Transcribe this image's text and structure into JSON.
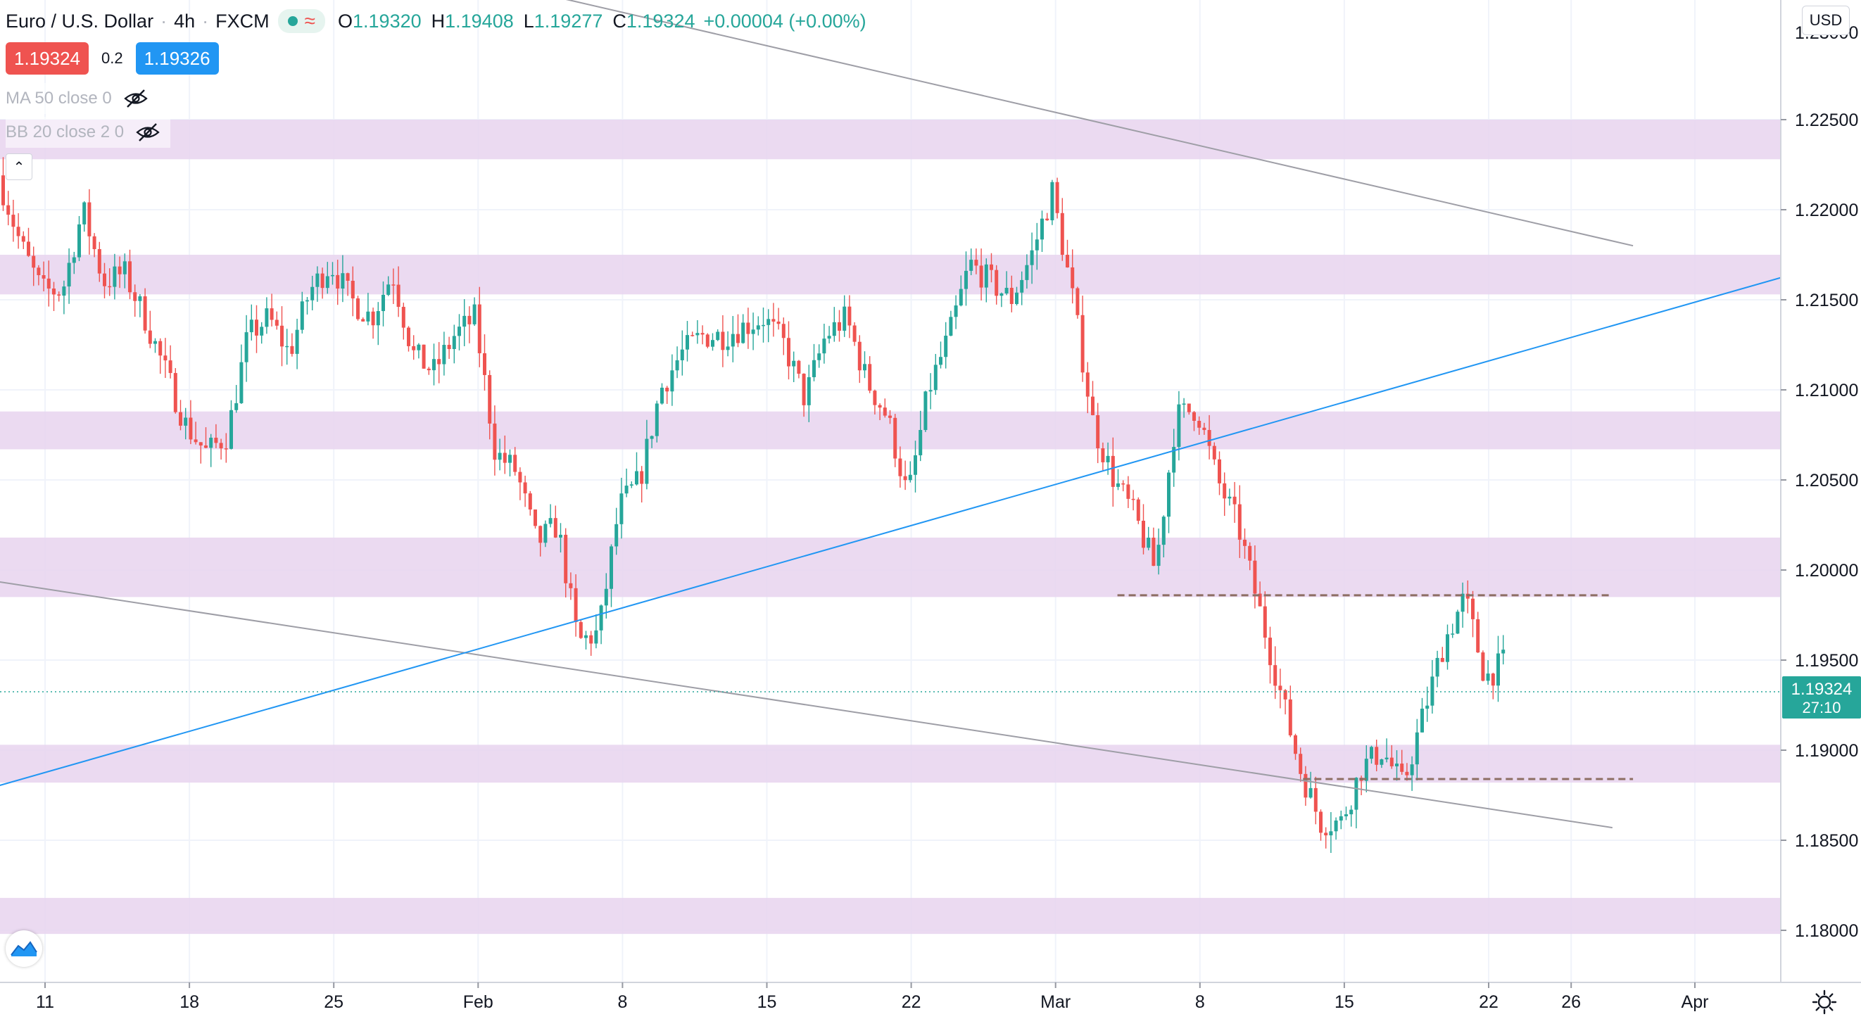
{
  "header": {
    "symbol": "Euro / U.S. Dollar",
    "interval": "4h",
    "exchange": "FXCM",
    "ohlc": {
      "o_label": "O",
      "o_value": "1.19320",
      "h_label": "H",
      "h_value": "1.19408",
      "l_label": "L",
      "l_value": "1.19277",
      "c_label": "C",
      "c_value": "1.19324",
      "change": "+0.00004 (+0.00%)"
    },
    "sell_price": "1.19324",
    "spread": "0.2",
    "buy_price": "1.19326",
    "currency": "USD"
  },
  "indicators": {
    "ma_label": "MA 50 close 0",
    "bb_label": "BB 20 close 2 0"
  },
  "colors": {
    "up": "#26a69a",
    "down": "#ef5350",
    "zone": "#e8d3ee",
    "blue_line": "#2196f3",
    "grey_line": "#9e9ea6",
    "dashed_line": "#8d6e63",
    "last_price": "#26a69a"
  },
  "chart_data": {
    "type": "candlestick",
    "timeframe": "4h",
    "x_ticks": [
      "11",
      "18",
      "25",
      "Feb",
      "8",
      "15",
      "22",
      "Mar",
      "8",
      "15",
      "22",
      "26",
      "Apr"
    ],
    "y_ticks": [
      "1.18000",
      "1.18500",
      "1.19000",
      "1.19500",
      "1.20000",
      "1.20500",
      "1.21000",
      "1.21500",
      "1.22000",
      "1.22500"
    ],
    "y_range": [
      1.177,
      1.2305
    ],
    "last_price": {
      "value": "1.19324",
      "countdown": "27:10"
    },
    "path": [
      [
        "2021-01-08",
        1.225
      ],
      [
        "2021-01-10",
        1.218
      ],
      [
        "2021-01-11",
        1.2155
      ],
      [
        "2021-01-12",
        1.2155
      ],
      [
        "2021-01-13",
        1.22
      ],
      [
        "2021-01-14",
        1.216
      ],
      [
        "2021-01-15",
        1.2165
      ],
      [
        "2021-01-16",
        1.214
      ],
      [
        "2021-01-18",
        1.208
      ],
      [
        "2021-01-19",
        1.2065
      ],
      [
        "2021-01-20",
        1.2075
      ],
      [
        "2021-01-21",
        1.213
      ],
      [
        "2021-01-22",
        1.214
      ],
      [
        "2021-01-23",
        1.212
      ],
      [
        "2021-01-24",
        1.2155
      ],
      [
        "2021-01-25",
        1.217
      ],
      [
        "2021-01-26",
        1.215
      ],
      [
        "2021-01-27",
        1.214
      ],
      [
        "2021-01-28",
        1.2165
      ],
      [
        "2021-01-29",
        1.212
      ],
      [
        "2021-01-30",
        1.211
      ],
      [
        "2021-01-31",
        1.213
      ],
      [
        "2021-02-01",
        1.214
      ],
      [
        "2021-02-02",
        1.2065
      ],
      [
        "2021-02-03",
        1.2055
      ],
      [
        "2021-02-04",
        1.2015
      ],
      [
        "2021-02-05",
        1.2025
      ],
      [
        "2021-02-06",
        1.196
      ],
      [
        "2021-02-07",
        1.1965
      ],
      [
        "2021-02-08",
        1.2035
      ],
      [
        "2021-02-09",
        1.205
      ],
      [
        "2021-02-10",
        1.21
      ],
      [
        "2021-02-11",
        1.212
      ],
      [
        "2021-02-12",
        1.213
      ],
      [
        "2021-02-13",
        1.213
      ],
      [
        "2021-02-15",
        1.214
      ],
      [
        "2021-02-16",
        1.2125
      ],
      [
        "2021-02-17",
        1.2095
      ],
      [
        "2021-02-18",
        1.213
      ],
      [
        "2021-02-19",
        1.214
      ],
      [
        "2021-02-20",
        1.2105
      ],
      [
        "2021-02-21",
        1.2085
      ],
      [
        "2021-02-22",
        1.204
      ],
      [
        "2021-02-23",
        1.21
      ],
      [
        "2021-02-24",
        1.213
      ],
      [
        "2021-02-25",
        1.217
      ],
      [
        "2021-02-26",
        1.216
      ],
      [
        "2021-02-27",
        1.215
      ],
      [
        "2021-02-28",
        1.2175
      ],
      [
        "2021-03-01",
        1.221
      ],
      [
        "2021-03-02",
        1.215
      ],
      [
        "2021-03-03",
        1.208
      ],
      [
        "2021-03-04",
        1.205
      ],
      [
        "2021-03-05",
        1.203
      ],
      [
        "2021-03-06",
        1.2
      ],
      [
        "2021-03-07",
        1.2085
      ],
      [
        "2021-03-08",
        1.209
      ],
      [
        "2021-03-09",
        1.205
      ],
      [
        "2021-03-10",
        1.2025
      ],
      [
        "2021-03-11",
        1.198
      ],
      [
        "2021-03-12",
        1.1935
      ],
      [
        "2021-03-13",
        1.189
      ],
      [
        "2021-03-14",
        1.186
      ],
      [
        "2021-03-15",
        1.186
      ],
      [
        "2021-03-16",
        1.189
      ],
      [
        "2021-03-17",
        1.19
      ],
      [
        "2021-03-18",
        1.188
      ],
      [
        "2021-03-19",
        1.192
      ],
      [
        "2021-03-20",
        1.196
      ],
      [
        "2021-03-21",
        1.1985
      ],
      [
        "2021-03-22",
        1.194
      ],
      [
        "2021-03-23",
        1.195
      ],
      [
        "2021-03-24",
        1.192
      ],
      [
        "2021-03-25",
        1.1935
      ],
      [
        "2021-03-26",
        1.1925
      ],
      [
        "2021-03-27",
        1.1895
      ],
      [
        "2021-03-28",
        1.1905
      ],
      [
        "2021-03-29",
        1.1985
      ],
      [
        "2021-03-30",
        1.1945
      ],
      [
        "2021-03-31",
        1.1915
      ],
      [
        "2021-04-01",
        1.1905
      ],
      [
        "2021-04-02",
        1.188
      ],
      [
        "2021-04-03",
        1.19
      ],
      [
        "2021-04-04",
        1.1925
      ],
      [
        "2021-04-05",
        1.1932
      ]
    ],
    "zones": [
      [
        1.2228,
        1.225
      ],
      [
        1.2153,
        1.2175
      ],
      [
        1.2067,
        1.2088
      ],
      [
        1.1985,
        1.2018
      ],
      [
        1.1882,
        1.1903
      ],
      [
        1.1798,
        1.1818
      ]
    ],
    "trend_lines": [
      {
        "style": "grey",
        "from": [
          "2021-01-01",
          1.241
        ],
        "to": [
          "2021-03-29",
          1.218
        ]
      },
      {
        "style": "grey",
        "from": [
          "2021-01-01",
          1.2007
        ],
        "to": [
          "2021-03-28",
          1.1857
        ]
      },
      {
        "style": "blue",
        "from": [
          "2021-01-01",
          1.1855
        ],
        "to": [
          "2021-04-06",
          1.2165
        ]
      }
    ],
    "dashed_levels": [
      {
        "value": 1.1986,
        "from": "2021-03-04",
        "to": "2021-03-28"
      },
      {
        "value": 1.1884,
        "from": "2021-03-13",
        "to": "2021-03-29"
      }
    ]
  }
}
